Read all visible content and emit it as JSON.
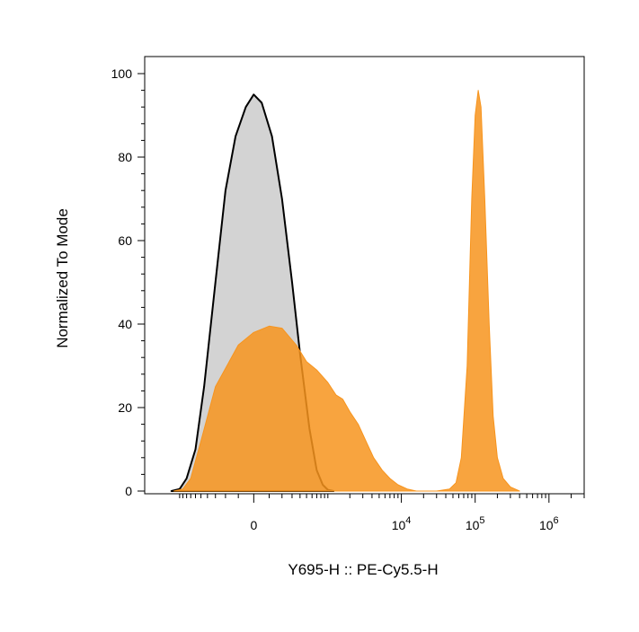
{
  "chart_data": {
    "type": "area",
    "title": "",
    "xlabel": "Y695-H :: PE-Cy5.5-H",
    "ylabel": "Normalized To Mode",
    "xscale": "biexponential",
    "ylim": [
      0,
      100
    ],
    "yticks": [
      {
        "value": 0,
        "label": "0"
      },
      {
        "value": 20,
        "label": "20"
      },
      {
        "value": 40,
        "label": "40"
      },
      {
        "value": 60,
        "label": "60"
      },
      {
        "value": 80,
        "label": "80"
      },
      {
        "value": 100,
        "label": "100"
      }
    ],
    "xticks": [
      {
        "value": 0,
        "base": "0",
        "exp": ""
      },
      {
        "value": 10000,
        "base": "10",
        "exp": "4"
      },
      {
        "value": 100000,
        "base": "10",
        "exp": "5"
      },
      {
        "value": 1000000,
        "base": "10",
        "exp": "6"
      }
    ],
    "grid": false,
    "legend": "none",
    "series": [
      {
        "color": "#d3d3d3",
        "outline": "#000000",
        "points": [
          [
            -1300,
            0
          ],
          [
            -1000,
            0.5
          ],
          [
            -800,
            3
          ],
          [
            -600,
            10
          ],
          [
            -450,
            25
          ],
          [
            -300,
            50
          ],
          [
            -200,
            72
          ],
          [
            -120,
            85
          ],
          [
            -50,
            92
          ],
          [
            0,
            95
          ],
          [
            50,
            93
          ],
          [
            120,
            85
          ],
          [
            200,
            70
          ],
          [
            300,
            50
          ],
          [
            400,
            33
          ],
          [
            550,
            15
          ],
          [
            700,
            5
          ],
          [
            850,
            1.5
          ],
          [
            1000,
            0.3
          ],
          [
            1200,
            0
          ]
        ]
      },
      {
        "color": "#f7941d",
        "outline": "#f7941d",
        "points": [
          [
            -1200,
            0
          ],
          [
            -900,
            0.5
          ],
          [
            -700,
            3
          ],
          [
            -500,
            12
          ],
          [
            -300,
            25
          ],
          [
            -100,
            35
          ],
          [
            0,
            38
          ],
          [
            100,
            39.5
          ],
          [
            200,
            39
          ],
          [
            350,
            35
          ],
          [
            500,
            31
          ],
          [
            700,
            29
          ],
          [
            1000,
            26
          ],
          [
            1300,
            23
          ],
          [
            1600,
            22
          ],
          [
            2000,
            19
          ],
          [
            2600,
            16
          ],
          [
            3300,
            12
          ],
          [
            4200,
            8
          ],
          [
            5500,
            5
          ],
          [
            7000,
            3
          ],
          [
            9000,
            1.5
          ],
          [
            12000,
            0.5
          ],
          [
            16000,
            0
          ],
          [
            30000,
            0
          ],
          [
            45000,
            0.5
          ],
          [
            55000,
            2
          ],
          [
            65000,
            8
          ],
          [
            78000,
            30
          ],
          [
            90000,
            70
          ],
          [
            100000,
            90
          ],
          [
            110000,
            96
          ],
          [
            120000,
            92
          ],
          [
            135000,
            70
          ],
          [
            155000,
            40
          ],
          [
            175000,
            18
          ],
          [
            200000,
            8
          ],
          [
            240000,
            3
          ],
          [
            300000,
            1
          ],
          [
            400000,
            0
          ]
        ]
      }
    ]
  }
}
